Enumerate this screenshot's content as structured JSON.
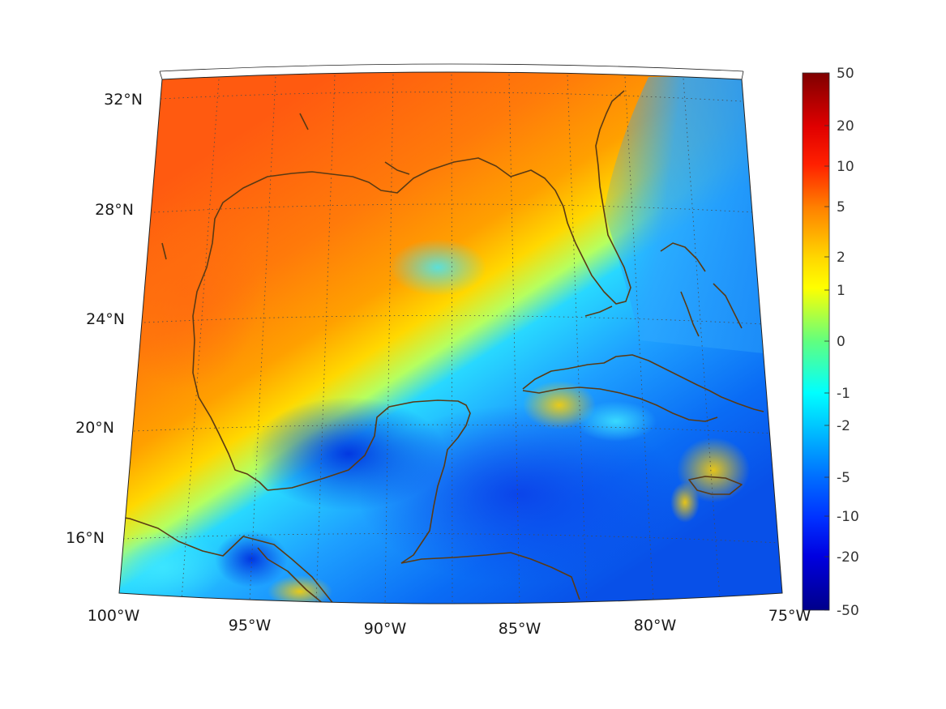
{
  "map": {
    "projection": "conic",
    "lon_range": [
      -100,
      -75
    ],
    "lat_range": [
      14.5,
      33
    ],
    "colormap": "jet",
    "coastline_color": "#5a3a14",
    "grid": "dotted"
  },
  "lon_labels": [
    "100°W",
    "95°W",
    "90°W",
    "85°W",
    "80°W",
    "75°W"
  ],
  "lat_labels": [
    "32°N",
    "28°N",
    "24°N",
    "20°N",
    "16°N"
  ],
  "colorbar": {
    "labels": [
      "50",
      "20",
      "10",
      "5",
      "2",
      "1",
      "0",
      "-1",
      "-2",
      "-5",
      "-10",
      "-20",
      "-50"
    ],
    "colors": [
      "#7f0000",
      "#ff0000",
      "#ff3b00",
      "#ff8c00",
      "#ffd500",
      "#ffff00",
      "#66ff66",
      "#00ffff",
      "#00bfff",
      "#0080ff",
      "#0040ff",
      "#0000d9",
      "#00008f"
    ]
  }
}
